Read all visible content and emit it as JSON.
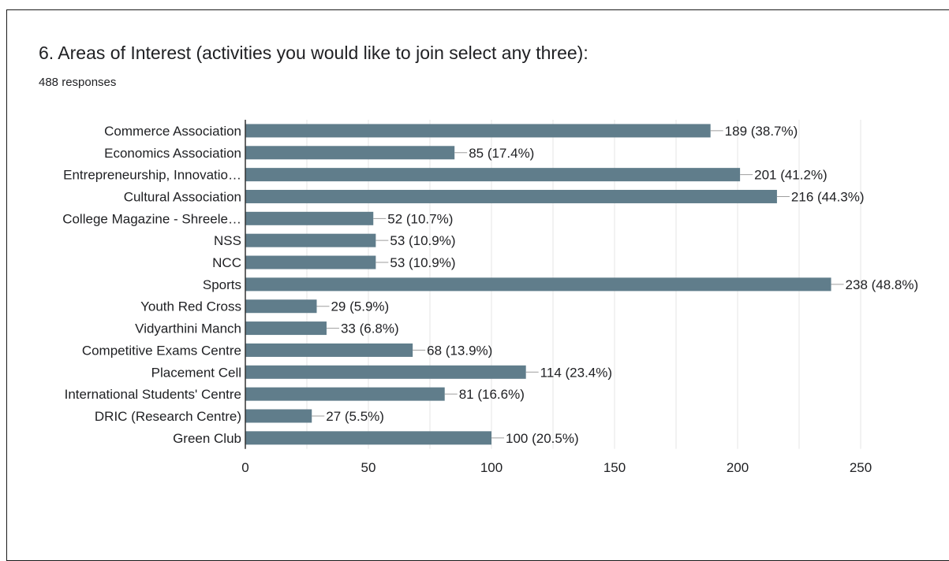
{
  "question": {
    "title": "6. Areas of Interest (activities you would like to join select any three):",
    "responses": "488 responses"
  },
  "colors": {
    "bar": "#607d8b",
    "grid": "#e6e6e6",
    "axis": "#333333",
    "text": "#202124",
    "leader": "#9e9e9e"
  },
  "chart_data": {
    "type": "bar",
    "orientation": "horizontal",
    "categories": [
      "Commerce Association",
      "Economics Association",
      "Entrepreneurship, Innovatio…",
      "Cultural Association",
      "College Magazine - Shreele…",
      "NSS",
      "NCC",
      "Sports",
      "Youth Red Cross",
      "Vidyarthini Manch",
      "Competitive Exams Centre",
      "Placement Cell",
      "International Students' Centre",
      "DRIC (Research Centre)",
      "Green Club"
    ],
    "values": [
      189,
      85,
      201,
      216,
      52,
      53,
      53,
      238,
      29,
      33,
      68,
      114,
      81,
      27,
      100
    ],
    "data_labels": [
      "189 (38.7%)",
      "85 (17.4%)",
      "201 (41.2%)",
      "216 (44.3%)",
      "52 (10.7%)",
      "53 (10.9%)",
      "53 (10.9%)",
      "238 (48.8%)",
      "29 (5.9%)",
      "33 (6.8%)",
      "68 (13.9%)",
      "114 (23.4%)",
      "81 (16.6%)",
      "27 (5.5%)",
      "100 (20.5%)"
    ],
    "xlim": [
      0,
      250
    ],
    "xticks": [
      0,
      50,
      100,
      150,
      200,
      250
    ],
    "xtick_labels": [
      "0",
      "50",
      "100",
      "150",
      "200",
      "250"
    ],
    "grid": true
  }
}
